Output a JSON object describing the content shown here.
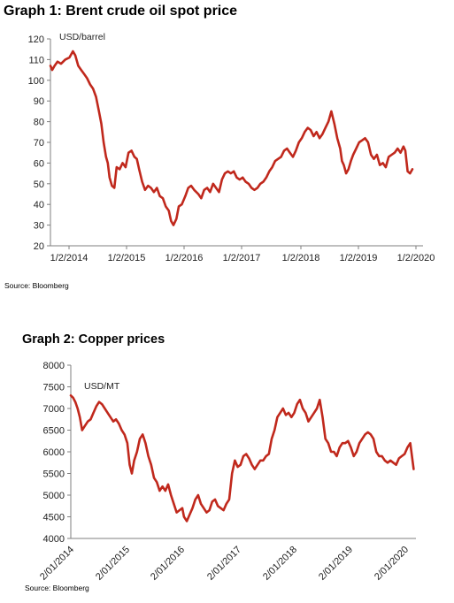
{
  "charts": {
    "graph1": {
      "title": "Graph 1: Brent crude oil spot price",
      "source": "Source: Bloomberg"
    },
    "graph2": {
      "title": "Graph 2: Copper prices",
      "source": "Source: Bloomberg"
    }
  },
  "chart_data": [
    {
      "type": "line",
      "title": "Graph 1: Brent crude oil spot price",
      "ylabel": "USD/barrel",
      "ylim": [
        20,
        120
      ],
      "yticks": [
        20,
        30,
        40,
        50,
        60,
        70,
        80,
        90,
        100,
        110,
        120
      ],
      "xlabels": [
        "1/2/2014",
        "1/2/2015",
        "1/2/2016",
        "1/2/2017",
        "1/2/2018",
        "1/2/2019",
        "1/2/2020"
      ],
      "xlim": [
        2014.0,
        2020.3
      ],
      "grid": false,
      "line_color": "#c0281c",
      "series": [
        {
          "x": [
            2014.0,
            2014.03,
            2014.07,
            2014.12,
            2014.18,
            2014.25,
            2014.32,
            2014.38,
            2014.42,
            2014.47,
            2014.52,
            2014.57,
            2014.62,
            2014.67,
            2014.72,
            2014.77,
            2014.82,
            2014.86,
            2014.9,
            2014.94,
            2014.97,
            2015.0,
            2015.04,
            2015.08,
            2015.12,
            2015.17,
            2015.22,
            2015.27,
            2015.32,
            2015.37,
            2015.42,
            2015.46,
            2015.5,
            2015.55,
            2015.6,
            2015.65,
            2015.7,
            2015.75,
            2015.8,
            2015.85,
            2015.9,
            2015.95,
            2016.0,
            2016.04,
            2016.08,
            2016.13,
            2016.17,
            2016.22,
            2016.28,
            2016.33,
            2016.38,
            2016.43,
            2016.5,
            2016.55,
            2016.6,
            2016.65,
            2016.7,
            2016.75,
            2016.8,
            2016.85,
            2016.9,
            2016.95,
            2017.0,
            2017.05,
            2017.1,
            2017.15,
            2017.2,
            2017.25,
            2017.3,
            2017.35,
            2017.4,
            2017.45,
            2017.5,
            2017.55,
            2017.6,
            2017.65,
            2017.7,
            2017.75,
            2017.8,
            2017.85,
            2017.9,
            2017.95,
            2018.0,
            2018.05,
            2018.1,
            2018.15,
            2018.2,
            2018.25,
            2018.3,
            2018.35,
            2018.4,
            2018.45,
            2018.5,
            2018.55,
            2018.6,
            2018.65,
            2018.7,
            2018.75,
            2018.8,
            2018.85,
            2018.9,
            2018.93,
            2018.96,
            2019.0,
            2019.04,
            2019.08,
            2019.12,
            2019.17,
            2019.22,
            2019.27,
            2019.32,
            2019.37,
            2019.42,
            2019.47,
            2019.52,
            2019.57,
            2019.62,
            2019.67,
            2019.72,
            2019.77,
            2019.82,
            2019.87,
            2019.92,
            2019.97,
            2020.0,
            2020.04,
            2020.08,
            2020.12
          ],
          "values": [
            107,
            105,
            107,
            109,
            108,
            110,
            111,
            114,
            112,
            107,
            105,
            103,
            101,
            98,
            96,
            92,
            85,
            79,
            70,
            63,
            60,
            53,
            49,
            48,
            58,
            57,
            60,
            58,
            65,
            66,
            63,
            62,
            57,
            51,
            47,
            49,
            48,
            46,
            48,
            44,
            43,
            39,
            37,
            32,
            30,
            33,
            39,
            40,
            44,
            48,
            49,
            47,
            45,
            43,
            47,
            48,
            46,
            50,
            48,
            46,
            52,
            55,
            56,
            55,
            56,
            53,
            52,
            53,
            51,
            50,
            48,
            47,
            48,
            50,
            51,
            53,
            56,
            58,
            61,
            62,
            63,
            66,
            67,
            65,
            63,
            66,
            70,
            72,
            75,
            77,
            76,
            73,
            75,
            72,
            74,
            77,
            80,
            85,
            79,
            72,
            67,
            61,
            59,
            55,
            57,
            61,
            64,
            67,
            70,
            71,
            72,
            70,
            64,
            62,
            64,
            59,
            60,
            58,
            63,
            64,
            65,
            67,
            65,
            68,
            66,
            56,
            55,
            57
          ]
        }
      ]
    },
    {
      "type": "line",
      "title": "Graph 2: Copper prices",
      "ylabel": "USD/MT",
      "ylim": [
        4000,
        8000
      ],
      "yticks": [
        4000,
        4500,
        5000,
        5500,
        6000,
        6500,
        7000,
        7500,
        8000
      ],
      "xlabels": [
        "2/01/2014",
        "2/01/2015",
        "2/01/2016",
        "2/01/2017",
        "2/01/2018",
        "2/01/2019",
        "2/01/2020"
      ],
      "xlim": [
        2014.0,
        2020.1
      ],
      "grid": false,
      "line_color": "#c0281c",
      "series": [
        {
          "x": [
            2014.0,
            2014.04,
            2014.08,
            2014.12,
            2014.16,
            2014.2,
            2014.25,
            2014.3,
            2014.35,
            2014.4,
            2014.45,
            2014.5,
            2014.55,
            2014.6,
            2014.65,
            2014.7,
            2014.75,
            2014.8,
            2014.85,
            2014.9,
            2014.95,
            2015.0,
            2015.04,
            2015.08,
            2015.12,
            2015.17,
            2015.22,
            2015.27,
            2015.32,
            2015.37,
            2015.42,
            2015.47,
            2015.52,
            2015.57,
            2015.62,
            2015.67,
            2015.72,
            2015.77,
            2015.82,
            2015.87,
            2015.92,
            2015.97,
            2016.0,
            2016.05,
            2016.1,
            2016.15,
            2016.2,
            2016.25,
            2016.3,
            2016.35,
            2016.4,
            2016.45,
            2016.5,
            2016.55,
            2016.6,
            2016.65,
            2016.7,
            2016.75,
            2016.8,
            2016.85,
            2016.9,
            2016.95,
            2017.0,
            2017.05,
            2017.1,
            2017.15,
            2017.2,
            2017.25,
            2017.3,
            2017.35,
            2017.4,
            2017.45,
            2017.5,
            2017.55,
            2017.6,
            2017.65,
            2017.7,
            2017.75,
            2017.8,
            2017.85,
            2017.9,
            2017.95,
            2018.0,
            2018.05,
            2018.1,
            2018.15,
            2018.2,
            2018.25,
            2018.3,
            2018.35,
            2018.4,
            2018.45,
            2018.5,
            2018.55,
            2018.6,
            2018.65,
            2018.7,
            2018.75,
            2018.8,
            2018.85,
            2018.9,
            2018.95,
            2019.0,
            2019.05,
            2019.1,
            2019.15,
            2019.2,
            2019.25,
            2019.3,
            2019.35,
            2019.4,
            2019.45,
            2019.5,
            2019.55,
            2019.6,
            2019.65,
            2019.7,
            2019.75,
            2019.8,
            2019.85,
            2019.9,
            2019.95,
            2020.0,
            2020.03,
            2020.06
          ],
          "values": [
            7300,
            7250,
            7150,
            7000,
            6800,
            6500,
            6600,
            6700,
            6750,
            6900,
            7050,
            7150,
            7100,
            7000,
            6900,
            6800,
            6700,
            6750,
            6650,
            6500,
            6400,
            6200,
            5700,
            5500,
            5800,
            6000,
            6300,
            6400,
            6200,
            5900,
            5700,
            5400,
            5300,
            5100,
            5200,
            5100,
            5250,
            5000,
            4800,
            4600,
            4650,
            4700,
            4500,
            4400,
            4550,
            4700,
            4900,
            5000,
            4800,
            4700,
            4600,
            4650,
            4850,
            4900,
            4750,
            4700,
            4650,
            4800,
            4900,
            5500,
            5800,
            5650,
            5700,
            5900,
            5950,
            5850,
            5700,
            5600,
            5700,
            5800,
            5800,
            5900,
            5950,
            6300,
            6500,
            6800,
            6900,
            7000,
            6850,
            6900,
            6800,
            6900,
            7100,
            7200,
            7000,
            6900,
            6700,
            6800,
            6900,
            7000,
            7200,
            6800,
            6300,
            6200,
            6000,
            6000,
            5900,
            6100,
            6200,
            6200,
            6250,
            6100,
            5900,
            6000,
            6200,
            6300,
            6400,
            6450,
            6400,
            6300,
            6000,
            5900,
            5900,
            5800,
            5750,
            5800,
            5750,
            5700,
            5850,
            5900,
            5950,
            6100,
            6200,
            5900,
            5600
          ]
        }
      ]
    }
  ]
}
